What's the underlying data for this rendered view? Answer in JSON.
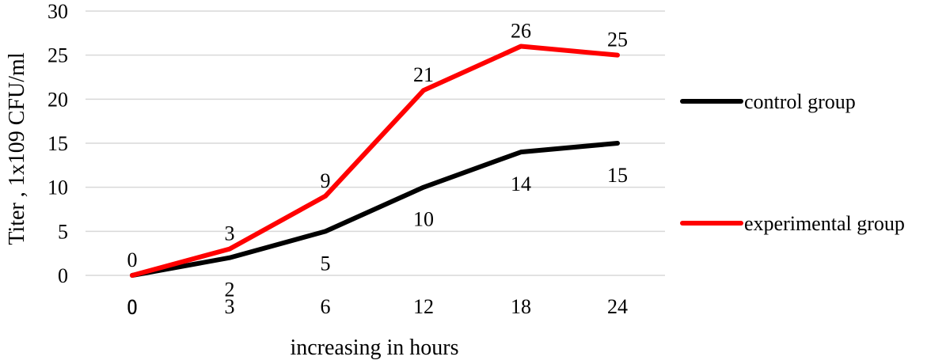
{
  "chart_data": {
    "type": "line",
    "categories": [
      "0",
      "3",
      "6",
      "12",
      "18",
      "24"
    ],
    "series": [
      {
        "name": "control group",
        "values": [
          0,
          2,
          5,
          10,
          14,
          15
        ],
        "color": "#000000"
      },
      {
        "name": "experimental group",
        "values": [
          0,
          3,
          9,
          21,
          26,
          25
        ],
        "color": "#ff0000"
      }
    ],
    "title": "",
    "xlabel": "increasing in hours",
    "ylabel": "Titer , 1x109 CFU/ml",
    "ylim": [
      0,
      30
    ],
    "yticks": [
      0,
      5,
      10,
      15,
      20,
      25,
      30
    ],
    "grid": true,
    "legend": "right"
  }
}
